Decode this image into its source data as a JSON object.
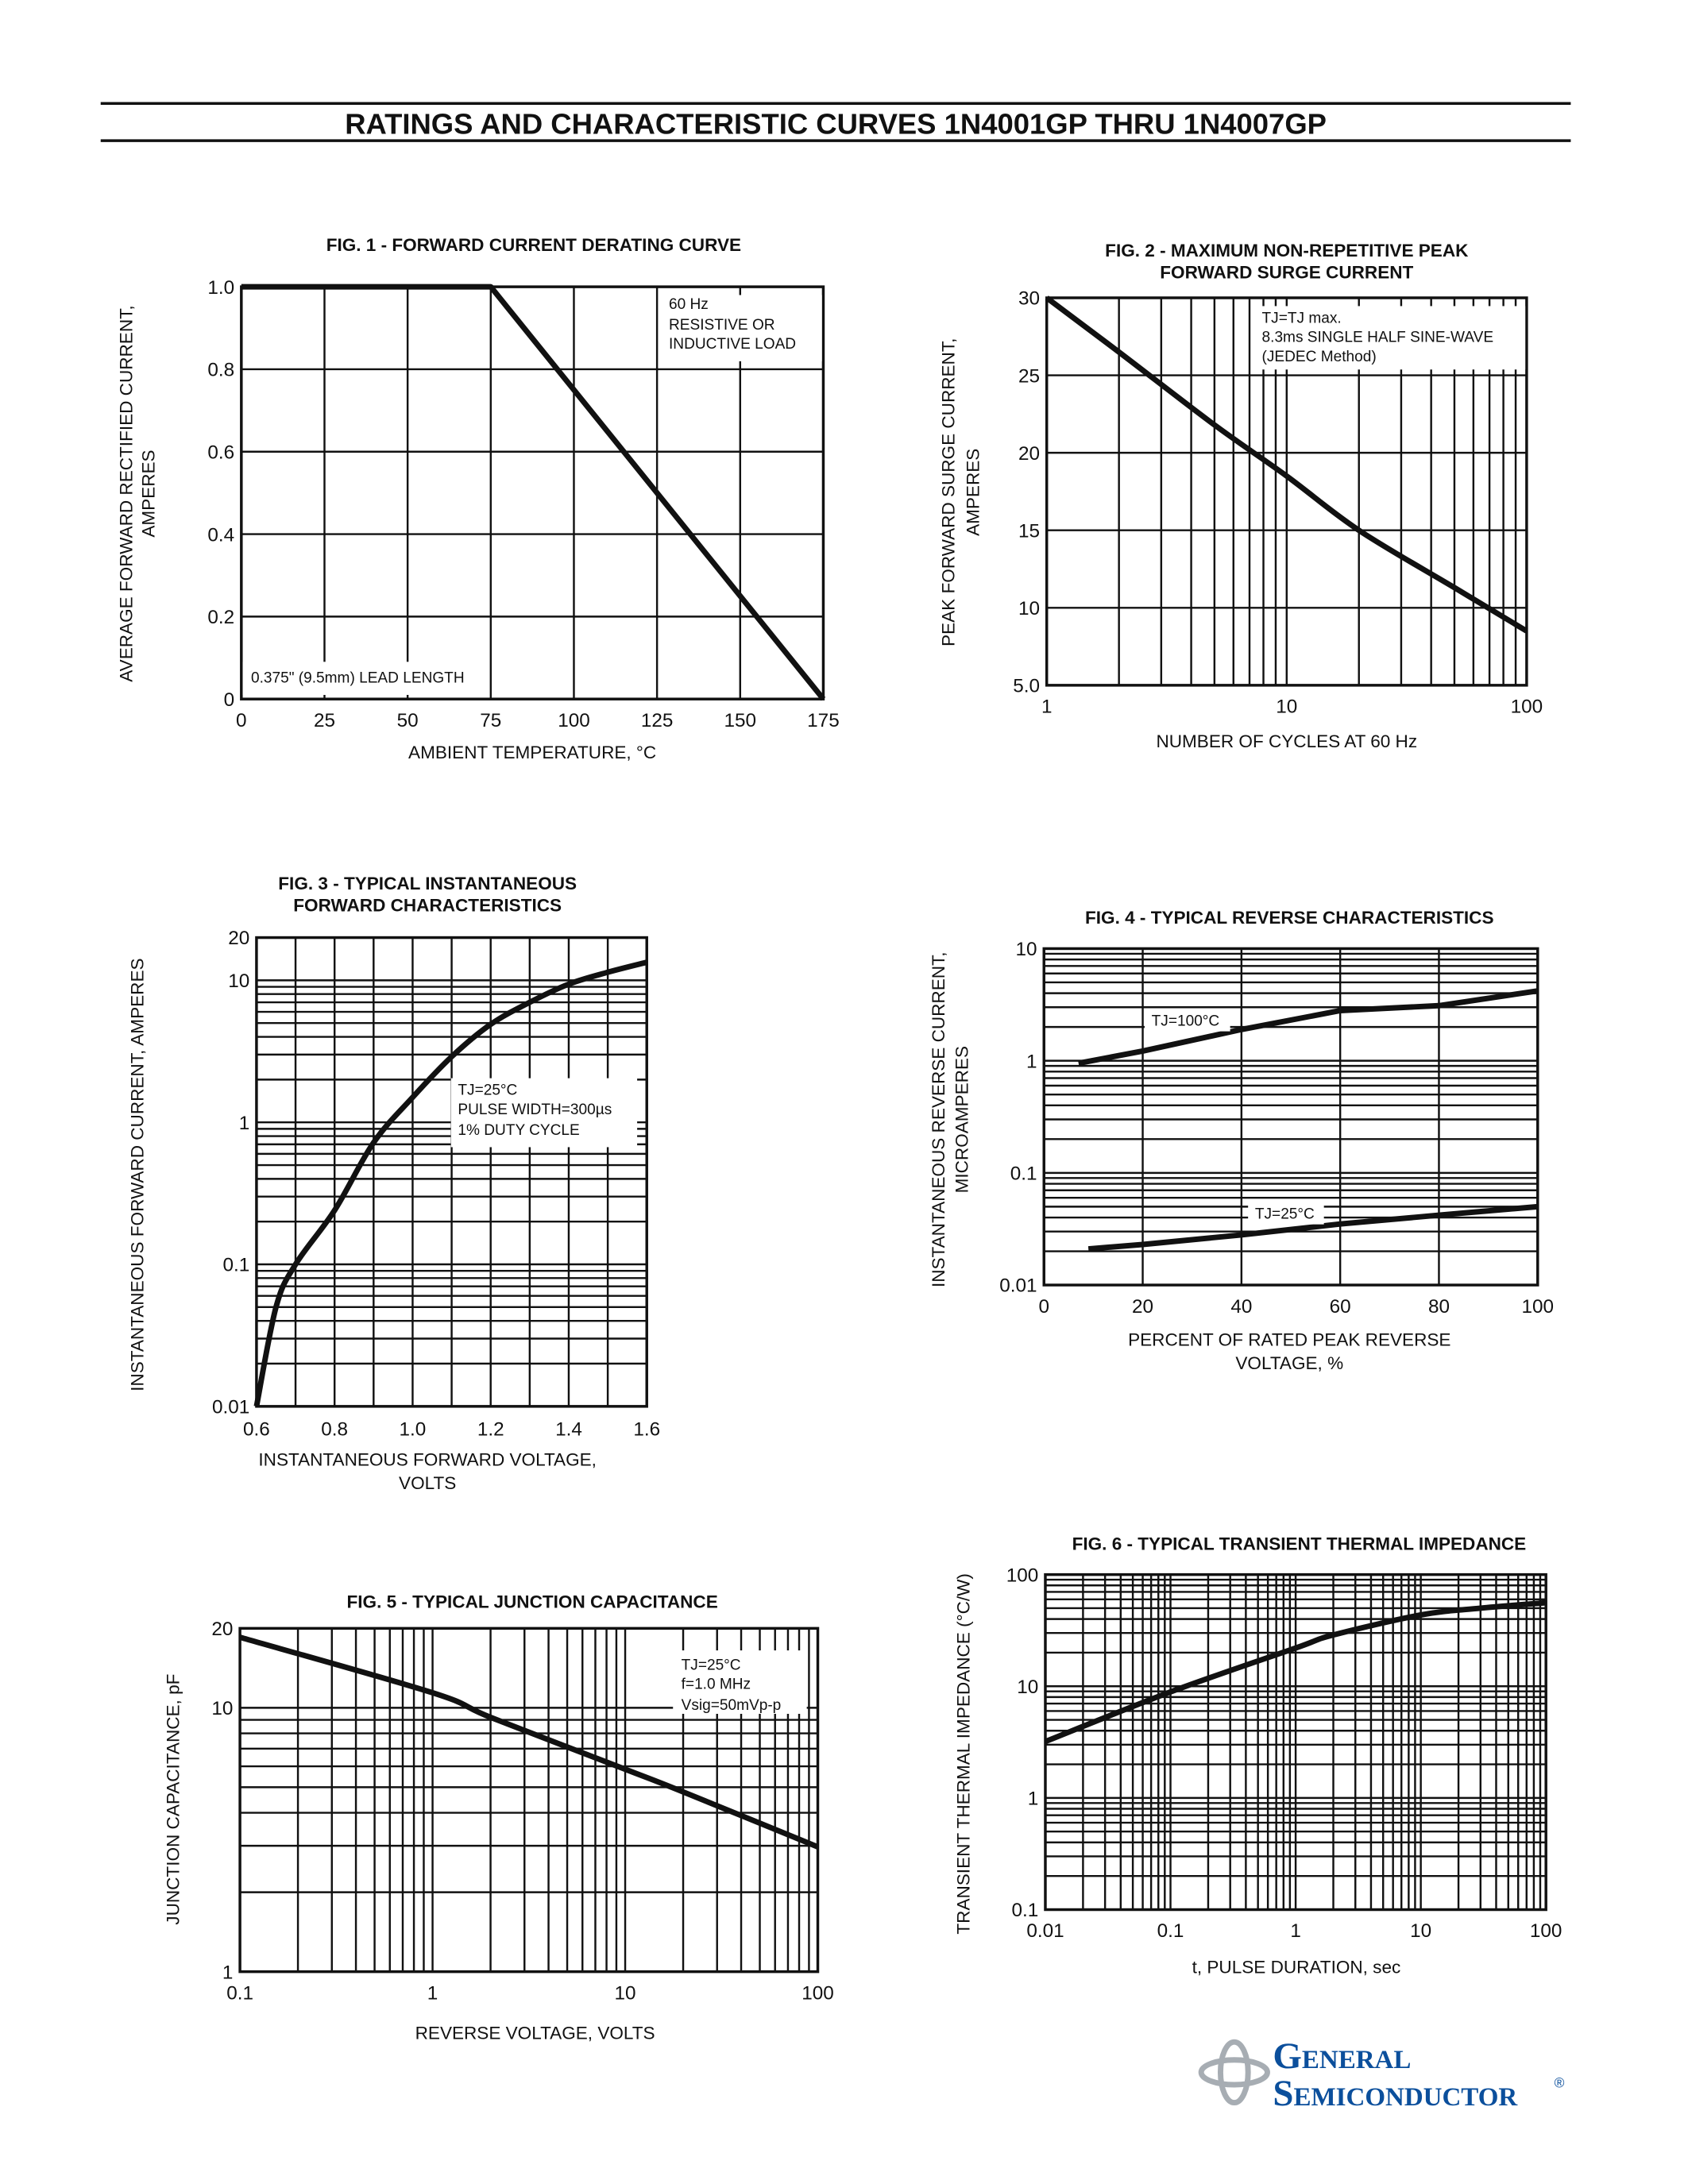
{
  "header": {
    "title": "RATINGS AND CHARACTERISTIC CURVES 1N4001GP THRU 1N4007GP"
  },
  "logo": {
    "line1": "General",
    "line2": "Semiconductor",
    "mark": "®",
    "color": "#0b4f9c",
    "emblem_color": "#a7adb3"
  },
  "chart_data": [
    {
      "type": "line",
      "title": [
        "FIG. 1 - FORWARD CURRENT DERATING CURVE"
      ],
      "xlabel": [
        "AMBIENT TEMPERATURE, °C"
      ],
      "ylabel": [
        "AVERAGE FORWARD RECTIFIED CURRENT,",
        "AMPERES"
      ],
      "x_scale": "linear",
      "y_scale": "linear",
      "xlim": [
        0,
        175
      ],
      "ylim": [
        0,
        1.0
      ],
      "x_ticks": [
        0,
        25,
        50,
        75,
        100,
        125,
        150,
        175
      ],
      "x_tick_labels": [
        "0",
        "25",
        "50",
        "75",
        "100",
        "125",
        "150",
        "175"
      ],
      "y_ticks": [
        0,
        0.2,
        0.4,
        0.6,
        0.8,
        1.0
      ],
      "y_tick_labels": [
        "0",
        "0.2",
        "0.4",
        "0.6",
        "0.8",
        "1.0"
      ],
      "grid": true,
      "annotations": [
        [
          "60 Hz",
          "RESISTIVE OR",
          "INDUCTIVE LOAD"
        ],
        [
          "0.375\" (9.5mm) LEAD LENGTH"
        ]
      ],
      "series": [
        {
          "x": [
            0,
            75,
            175
          ],
          "y": [
            1.0,
            1.0,
            0
          ]
        }
      ]
    },
    {
      "type": "line",
      "title": [
        "FIG. 2 - MAXIMUM NON-REPETITIVE PEAK",
        "FORWARD SURGE CURRENT"
      ],
      "xlabel": [
        "NUMBER OF CYCLES AT 60 Hz"
      ],
      "ylabel": [
        "PEAK FORWARD SURGE CURRENT,",
        "AMPERES"
      ],
      "x_scale": "log",
      "y_scale": "linear",
      "xlim": [
        1,
        100
      ],
      "ylim": [
        5,
        30
      ],
      "x_ticks": [
        1,
        10,
        100
      ],
      "x_tick_labels": [
        "1",
        "10",
        "100"
      ],
      "y_ticks": [
        5,
        10,
        15,
        20,
        25,
        30
      ],
      "y_tick_labels": [
        "5.0",
        "10",
        "15",
        "20",
        "25",
        "30"
      ],
      "grid": true,
      "annotations": [
        [
          "TJ=TJ max.",
          "8.3ms SINGLE HALF SINE-WAVE",
          "(JEDEC Method)"
        ]
      ],
      "series": [
        {
          "x": [
            1,
            2,
            5,
            10,
            20,
            50,
            100
          ],
          "y": [
            30,
            26.5,
            21.8,
            18.5,
            15,
            11.3,
            8.5
          ]
        }
      ]
    },
    {
      "type": "line",
      "title": [
        "FIG. 3 - TYPICAL INSTANTANEOUS",
        "FORWARD CHARACTERISTICS"
      ],
      "xlabel": [
        "INSTANTANEOUS FORWARD VOLTAGE,",
        "VOLTS"
      ],
      "ylabel": [
        "INSTANTANEOUS FORWARD CURRENT, AMPERES"
      ],
      "x_scale": "linear",
      "y_scale": "log",
      "xlim": [
        0.6,
        1.6
      ],
      "ylim": [
        0.01,
        20
      ],
      "x_ticks": [
        0.6,
        0.8,
        1.0,
        1.2,
        1.4,
        1.6
      ],
      "x_tick_labels": [
        "0.6",
        "0.8",
        "1.0",
        "1.2",
        "1.4",
        "1.6"
      ],
      "y_ticks": [
        0.01,
        0.1,
        1,
        10,
        20
      ],
      "y_tick_labels": [
        "0.01",
        "0.1",
        "1",
        "10",
        "20"
      ],
      "grid": true,
      "annotations": [
        [
          "TJ=25°C",
          "PULSE WIDTH=300µs",
          "1% DUTY CYCLE"
        ]
      ],
      "series": [
        {
          "x": [
            0.6,
            0.65,
            0.7,
            0.8,
            0.9,
            1.0,
            1.1,
            1.2,
            1.3,
            1.4,
            1.5,
            1.6
          ],
          "y": [
            0.01,
            0.05,
            0.1,
            0.24,
            0.72,
            1.5,
            2.9,
            4.9,
            7.0,
            9.4,
            11.4,
            13.4
          ]
        }
      ]
    },
    {
      "type": "line",
      "title": [
        "FIG. 4 - TYPICAL REVERSE CHARACTERISTICS"
      ],
      "xlabel": [
        "PERCENT OF RATED PEAK REVERSE",
        "VOLTAGE, %"
      ],
      "ylabel": [
        "INSTANTANEOUS REVERSE CURRENT,",
        "MICROAMPERES"
      ],
      "x_scale": "linear",
      "y_scale": "log",
      "xlim": [
        0,
        100
      ],
      "ylim": [
        0.01,
        10
      ],
      "x_ticks": [
        0,
        20,
        40,
        60,
        80,
        100
      ],
      "x_tick_labels": [
        "0",
        "20",
        "40",
        "60",
        "80",
        "100"
      ],
      "y_ticks": [
        0.01,
        0.1,
        1,
        10
      ],
      "y_tick_labels": [
        "0.01",
        "0.1",
        "1",
        "10"
      ],
      "grid": true,
      "annotations": [],
      "series": [
        {
          "name": "TJ=100°C",
          "x": [
            7,
            20,
            40,
            60,
            80,
            100
          ],
          "y": [
            0.95,
            1.22,
            1.9,
            2.8,
            3.1,
            4.2
          ]
        },
        {
          "name": "TJ=25°C",
          "x": [
            9,
            20,
            40,
            60,
            80,
            100
          ],
          "y": [
            0.021,
            0.023,
            0.028,
            0.035,
            0.042,
            0.05
          ]
        }
      ]
    },
    {
      "type": "line",
      "title": [
        "FIG. 5 - TYPICAL JUNCTION CAPACITANCE"
      ],
      "xlabel": [
        "REVERSE VOLTAGE, VOLTS"
      ],
      "ylabel": [
        "JUNCTION CAPACITANCE, pF"
      ],
      "x_scale": "log",
      "y_scale": "log",
      "xlim": [
        0.1,
        100
      ],
      "ylim": [
        1,
        20
      ],
      "x_ticks": [
        0.1,
        1,
        10,
        100
      ],
      "x_tick_labels": [
        "0.1",
        "1",
        "10",
        "100"
      ],
      "y_ticks": [
        1,
        10,
        20
      ],
      "y_tick_labels": [
        "1",
        "10",
        "20"
      ],
      "grid": true,
      "annotations": [
        [
          "TJ=25°C",
          "f=1.0 MHz",
          "Vsig=50mVp-p"
        ]
      ],
      "series": [
        {
          "x": [
            0.1,
            1,
            2,
            10,
            20,
            100
          ],
          "y": [
            18.5,
            11.4,
            9.2,
            5.85,
            4.8,
            2.97
          ]
        }
      ]
    },
    {
      "type": "line",
      "title": [
        "FIG. 6 - TYPICAL TRANSIENT THERMAL IMPEDANCE"
      ],
      "xlabel": [
        "t, PULSE DURATION, sec"
      ],
      "ylabel": [
        "TRANSIENT THERMAL IMPEDANCE (°C/W)"
      ],
      "x_scale": "log",
      "y_scale": "log",
      "xlim": [
        0.01,
        100
      ],
      "ylim": [
        0.1,
        100
      ],
      "x_ticks": [
        0.01,
        0.1,
        1,
        10,
        100
      ],
      "x_tick_labels": [
        "0.01",
        "0.1",
        "1",
        "10",
        "100"
      ],
      "y_ticks": [
        0.1,
        1,
        10,
        100
      ],
      "y_tick_labels": [
        "0.1",
        "1",
        "10",
        "100"
      ],
      "grid": true,
      "annotations": [],
      "series": [
        {
          "x": [
            0.01,
            0.1,
            1,
            2,
            10,
            30,
            100
          ],
          "y": [
            3.2,
            8.9,
            22,
            28.8,
            43.5,
            50,
            56
          ]
        }
      ]
    }
  ]
}
